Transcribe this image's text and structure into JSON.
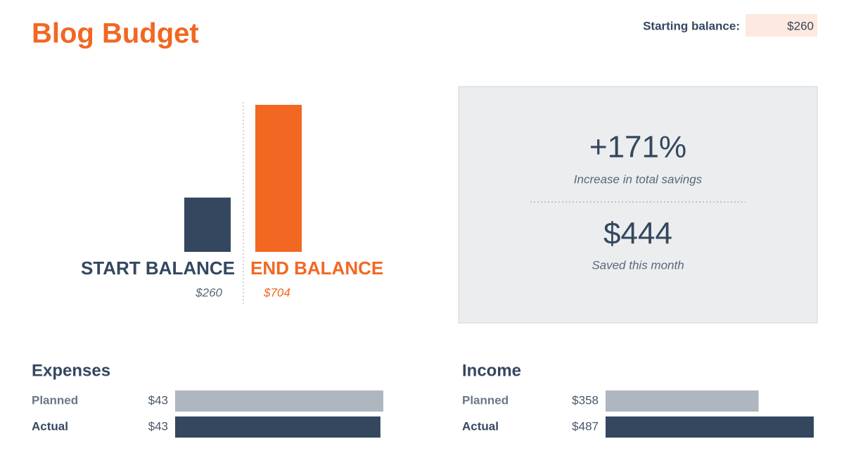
{
  "header": {
    "title": "Blog Budget",
    "starting_balance_label": "Starting balance:",
    "starting_balance": "$260"
  },
  "summary": {
    "increase": "+171%",
    "increase_label": "Increase in total savings",
    "saved": "$444",
    "saved_label": "Saved this month"
  },
  "chart_data": [
    {
      "type": "bar",
      "categories": [
        "START BALANCE",
        "END BALANCE"
      ],
      "values": [
        260,
        704
      ],
      "value_labels": [
        "$260",
        "$704"
      ],
      "colors": [
        "#34475f",
        "#f26722"
      ]
    },
    {
      "type": "hbar",
      "title": "Expenses",
      "categories": [
        "Planned",
        "Actual"
      ],
      "values": [
        43.4,
        42.8
      ],
      "value_labels": [
        "$43",
        "$43"
      ],
      "colors": [
        "#aeb7c0",
        "#34475f"
      ]
    },
    {
      "type": "hbar",
      "title": "Income",
      "categories": [
        "Planned",
        "Actual"
      ],
      "values": [
        358,
        487
      ],
      "value_labels": [
        "$358",
        "$487"
      ],
      "colors": [
        "#aeb7c0",
        "#34475f"
      ]
    }
  ]
}
